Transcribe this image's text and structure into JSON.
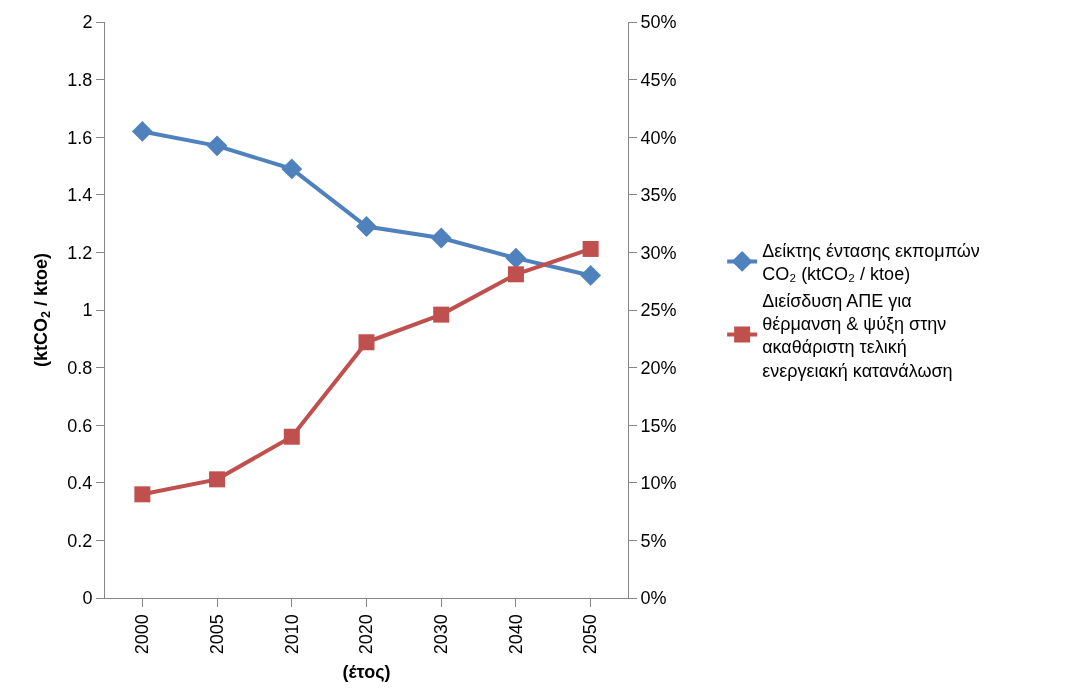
{
  "chart_data": {
    "type": "line",
    "xlabel": "(έτος)",
    "ylabel": "(ktCO$_{2}$ / ktoe)",
    "categories": [
      "2000",
      "2005",
      "2010",
      "2020",
      "2030",
      "2040",
      "2050"
    ],
    "series": [
      {
        "name": "Δείκτης έντασης εκπομπών CO₂ (ktCO₂ / ktoe)",
        "color": "#4f81bd",
        "marker": "diamond",
        "values": [
          1.62,
          1.57,
          1.49,
          1.29,
          1.25,
          1.18,
          1.12
        ]
      },
      {
        "name": "Διείσδυση ΑΠΕ για θέρμανση & ψύξη στην ακαθάριστη τελική ενεργειακή κατανάλωση",
        "color": "#c0504d",
        "marker": "square",
        "axis": "y2",
        "values": [
          9.0,
          10.3,
          14.0,
          22.2,
          24.6,
          28.1,
          30.3
        ]
      }
    ],
    "ylim": [
      0,
      2
    ],
    "yticks": [
      0,
      0.2,
      0.4,
      0.6,
      0.8,
      1,
      1.2,
      1.4,
      1.6,
      1.8,
      2
    ],
    "y2lim": [
      0,
      50
    ],
    "y2ticks": [
      {
        "value": 0,
        "label": "0%"
      },
      {
        "value": 5,
        "label": "5%"
      },
      {
        "value": 10,
        "label": "10%"
      },
      {
        "value": 15,
        "label": "15%"
      },
      {
        "value": 20,
        "label": "20%"
      },
      {
        "value": 25,
        "label": "25%"
      },
      {
        "value": 30,
        "label": "30%"
      },
      {
        "value": 35,
        "label": "35%"
      },
      {
        "value": 40,
        "label": "40%"
      },
      {
        "value": 45,
        "label": "45%"
      },
      {
        "value": 50,
        "label": "50%"
      }
    ],
    "legend": "right",
    "line_style": "solid"
  }
}
